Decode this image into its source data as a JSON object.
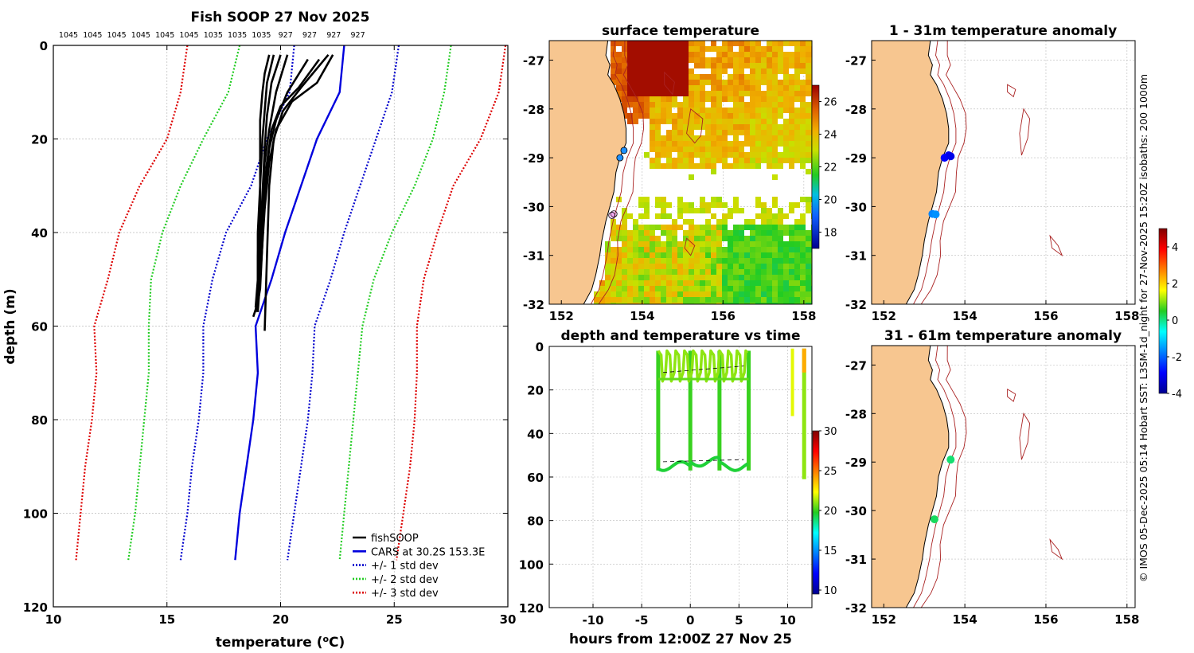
{
  "figure_title": "Fish SOOP 27 Nov 2025",
  "credit": "© IMOS 05-Dec-2025 05:14 Hobart SST: L3SM-1d_night for 27-Nov-2025 15:20Z isobaths: 200  1000m",
  "colors": {
    "fishSOOP": "#000000",
    "cars": "#0000dd",
    "std1": "#0000cc",
    "std2": "#22cc22",
    "std3": "#dd0000",
    "land": "#f7c690",
    "isobath": "#aa2222",
    "grid": "#bbbbbb"
  },
  "chart_data": [
    {
      "id": "profile",
      "type": "line",
      "title": "Fish SOOP 27 Nov 2025",
      "xlabel": "temperature (",
      "xlabel_sup": "o",
      "xlabel_end": "C)",
      "ylabel": "depth (m)",
      "xlim": [
        10,
        30
      ],
      "ylim": [
        0,
        120
      ],
      "y_reversed": true,
      "xticks": [
        10,
        15,
        20,
        25,
        30
      ],
      "yticks": [
        0,
        20,
        40,
        60,
        80,
        100,
        120
      ],
      "grid": true,
      "top_labels": [
        "1045",
        "1045",
        "1045",
        "1045",
        "1045",
        "1045",
        "1035",
        "1035",
        "1035",
        "927",
        "927",
        "927",
        "927"
      ],
      "legend_position": "bottom-right",
      "legend": [
        {
          "label": "fishSOOP",
          "style": "solid",
          "color": "#000000"
        },
        {
          "label": "CARS at 30.2S 153.3E",
          "style": "solid",
          "color": "#0000dd"
        },
        {
          "label": "+/- 1 std dev",
          "style": "dotted",
          "color": "#0000cc"
        },
        {
          "label": "+/- 2 std dev",
          "style": "dotted",
          "color": "#22cc22"
        },
        {
          "label": "+/- 3 std dev",
          "style": "dotted",
          "color": "#dd0000"
        }
      ],
      "cars": {
        "depth": [
          0,
          10,
          20,
          30,
          40,
          50,
          60,
          70,
          80,
          90,
          100,
          110
        ],
        "temp": [
          22.8,
          22.6,
          21.6,
          20.9,
          20.2,
          19.6,
          18.9,
          19.0,
          18.8,
          18.5,
          18.2,
          18.0
        ]
      },
      "std_dev": {
        "depth": [
          0,
          10,
          20,
          30,
          40,
          50,
          60,
          70,
          80,
          90,
          100,
          110
        ],
        "sd1_left": [
          20.6,
          20.4,
          19.4,
          18.7,
          17.6,
          17.0,
          16.6,
          16.6,
          16.4,
          16.1,
          15.9,
          15.6
        ],
        "sd1_right": [
          25.2,
          24.9,
          24.2,
          23.5,
          22.8,
          22.2,
          21.5,
          21.4,
          21.2,
          20.9,
          20.6,
          20.3
        ],
        "sd2_left": [
          18.2,
          17.7,
          16.6,
          15.6,
          14.8,
          14.3,
          14.2,
          14.2,
          14.0,
          13.8,
          13.6,
          13.3
        ],
        "sd2_right": [
          27.5,
          27.2,
          26.7,
          25.9,
          24.9,
          24.1,
          23.6,
          23.4,
          23.2,
          23.0,
          22.8,
          22.6
        ],
        "sd3_left": [
          15.9,
          15.6,
          15.0,
          13.8,
          12.9,
          12.4,
          11.8,
          11.9,
          11.7,
          11.4,
          11.2,
          11.0
        ],
        "sd3_right": [
          29.9,
          29.6,
          28.8,
          27.6,
          26.9,
          26.3,
          26.0,
          26.0,
          25.9,
          25.7,
          25.4,
          25.1
        ]
      },
      "fishSOOP_profiles": [
        {
          "depth": [
            2,
            6,
            10,
            16,
            25,
            35,
            45,
            55,
            57
          ],
          "temp": [
            19.5,
            19.3,
            19.2,
            19.1,
            19.1,
            19.1,
            19.0,
            19.0,
            18.9
          ]
        },
        {
          "depth": [
            2,
            8,
            14,
            20,
            30,
            40,
            50,
            56
          ],
          "temp": [
            19.7,
            19.4,
            19.3,
            19.2,
            19.1,
            19.0,
            19.0,
            18.9
          ]
        },
        {
          "depth": [
            2,
            8,
            15,
            22,
            32,
            42,
            52,
            57
          ],
          "temp": [
            20.0,
            19.6,
            19.4,
            19.3,
            19.2,
            19.1,
            19.0,
            18.9
          ]
        },
        {
          "depth": [
            2,
            10,
            18,
            25,
            35,
            45,
            55,
            58
          ],
          "temp": [
            20.3,
            19.8,
            19.5,
            19.3,
            19.2,
            19.1,
            19.0,
            18.8
          ]
        },
        {
          "depth": [
            3,
            10,
            16,
            22,
            32,
            42,
            52,
            55
          ],
          "temp": [
            21.2,
            20.3,
            19.8,
            19.5,
            19.3,
            19.2,
            19.1,
            19.0
          ]
        },
        {
          "depth": [
            3,
            9,
            13,
            18,
            25,
            35,
            45,
            56
          ],
          "temp": [
            21.7,
            20.8,
            20.0,
            19.6,
            19.4,
            19.2,
            19.1,
            19.0
          ]
        },
        {
          "depth": [
            2,
            8,
            12,
            18,
            25,
            35,
            50,
            57
          ],
          "temp": [
            22.3,
            21.6,
            20.5,
            19.8,
            19.5,
            19.3,
            19.1,
            19.0
          ]
        },
        {
          "depth": [
            2,
            9,
            14,
            20,
            30,
            45,
            61
          ],
          "temp": [
            22.1,
            20.9,
            20.1,
            19.7,
            19.5,
            19.4,
            19.3
          ]
        }
      ]
    },
    {
      "id": "sst_map",
      "type": "heatmap",
      "title": "surface temperature",
      "xlim": [
        151.7,
        158.2
      ],
      "ylim": [
        -32,
        -26.6
      ],
      "xticks": [
        152,
        154,
        156,
        158
      ],
      "yticks": [
        -27,
        -28,
        -29,
        -30,
        -31,
        -32
      ],
      "colorbar_ticks": [
        18,
        20,
        22,
        24,
        26
      ],
      "colorbar_range": [
        17,
        27
      ],
      "stations": [
        {
          "lon": 153.55,
          "lat": -28.85,
          "value": 19
        },
        {
          "lon": 153.45,
          "lat": -29.0,
          "value": 19
        },
        {
          "lon": 153.3,
          "lat": -30.15,
          "value": 19
        },
        {
          "lon": 153.25,
          "lat": -30.18,
          "value": 19
        }
      ]
    },
    {
      "id": "anomaly_1_31",
      "type": "scatter",
      "title": "1 - 31m temperature anomaly",
      "xlim": [
        151.7,
        158.2
      ],
      "ylim": [
        -32,
        -26.6
      ],
      "xticks": [
        152,
        154,
        156,
        158
      ],
      "yticks": [
        -27,
        -28,
        -29,
        -30,
        -31,
        -32
      ],
      "points": [
        {
          "lon": 153.6,
          "lat": -28.95,
          "anomaly": -3.0
        },
        {
          "lon": 153.5,
          "lat": -29.0,
          "anomaly": -2.9
        },
        {
          "lon": 153.65,
          "lat": -28.97,
          "anomaly": -3.1
        },
        {
          "lon": 153.2,
          "lat": -30.15,
          "anomaly": -1.7
        },
        {
          "lon": 153.28,
          "lat": -30.16,
          "anomaly": -1.6
        }
      ]
    },
    {
      "id": "anomaly_31_61",
      "type": "scatter",
      "title": "31 - 61m temperature anomaly",
      "xlim": [
        151.7,
        158.2
      ],
      "ylim": [
        -32,
        -26.6
      ],
      "xticks": [
        152,
        154,
        156,
        158
      ],
      "yticks": [
        -27,
        -28,
        -29,
        -30,
        -31,
        -32
      ],
      "colorbar_ticks": [
        -4,
        -2,
        0,
        2,
        4
      ],
      "colorbar_range": [
        -4,
        5
      ],
      "points": [
        {
          "lon": 153.65,
          "lat": -28.95,
          "anomaly": 0.1
        },
        {
          "lon": 153.25,
          "lat": -30.18,
          "anomaly": 0.2
        }
      ]
    },
    {
      "id": "depth_time",
      "type": "scatter",
      "title": "depth and temperature vs time",
      "xlabel": "hours from 12:00Z 27 Nov 25",
      "xlim": [
        -14.5,
        12.5
      ],
      "ylim": [
        0,
        120
      ],
      "y_reversed": true,
      "xticks": [
        -10,
        -5,
        0,
        5,
        10
      ],
      "yticks": [
        0,
        20,
        40,
        60,
        80,
        100,
        120
      ],
      "colorbar_ticks": [
        10,
        15,
        20,
        25,
        30
      ],
      "colorbar_range": [
        9.5,
        30
      ],
      "cycles": [
        {
          "t_start": -3.3,
          "t_end": 6.0
        },
        {
          "t_start": 10.5,
          "t_end": 11.7
        }
      ]
    }
  ]
}
